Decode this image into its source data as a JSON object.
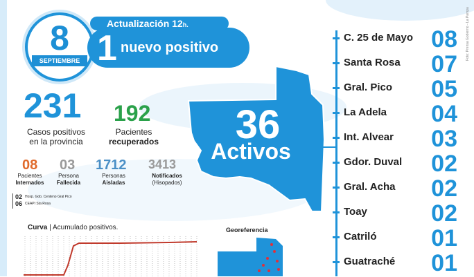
{
  "header": {
    "day": "8",
    "month": "SEPTIEMBRE",
    "update_label": "Actualización 12",
    "update_unit": "h.",
    "new_positive_count": "1",
    "new_positive_text": "nuevo positivo"
  },
  "stats": {
    "total_cases": "231",
    "total_cases_label_1": "Casos positivos",
    "total_cases_label_2": "en la provincia",
    "recovered": "192",
    "recovered_label_1": "Pacientes",
    "recovered_label_2": "recuperados",
    "internados": "08",
    "internados_label_1": "Pacientes",
    "internados_label_2": "Internados",
    "fallecida": "03",
    "fallecida_label_1": "Persona",
    "fallecida_label_2": "Fallecida",
    "aisladas": "1712",
    "aisladas_label_1": "Personas",
    "aisladas_label_2": "Aisladas",
    "notificados": "3413",
    "notificados_label_1": "Notificados",
    "notificados_label_2": "(Hisopados)",
    "hosp_1_count": "02",
    "hosp_1_name": "Hosp. Gob. Centeno Gral Pico",
    "hosp_2_count": "06",
    "hosp_2_name": "CEAPI Sta Rosa"
  },
  "map": {
    "active_count": "36",
    "active_label": "Activos"
  },
  "localities": [
    {
      "name": "C. 25 de Mayo",
      "value": "08"
    },
    {
      "name": "Santa Rosa",
      "value": "07"
    },
    {
      "name": "Gral. Pico",
      "value": "05"
    },
    {
      "name": "La Adela",
      "value": "04"
    },
    {
      "name": "Int. Alvear",
      "value": "03"
    },
    {
      "name": "Gdor. Duval",
      "value": "02"
    },
    {
      "name": "Gral. Acha",
      "value": "02"
    },
    {
      "name": "Toay",
      "value": "02"
    },
    {
      "name": "Catriló",
      "value": "01"
    },
    {
      "name": "Guatraché",
      "value": "01"
    }
  ],
  "chart": {
    "label_bold": "Curva",
    "label_rest": " | Acumulado positivos."
  },
  "geo": {
    "title": "Georeferencia"
  },
  "credit": "Foto: Prensa Gobierno - La Pampa",
  "colors": {
    "accent_blue": "#1f93d9",
    "green": "#2aa14a",
    "orange": "#e06a2b",
    "gray": "#9a9a9a",
    "chart_red": "#c0392b"
  }
}
